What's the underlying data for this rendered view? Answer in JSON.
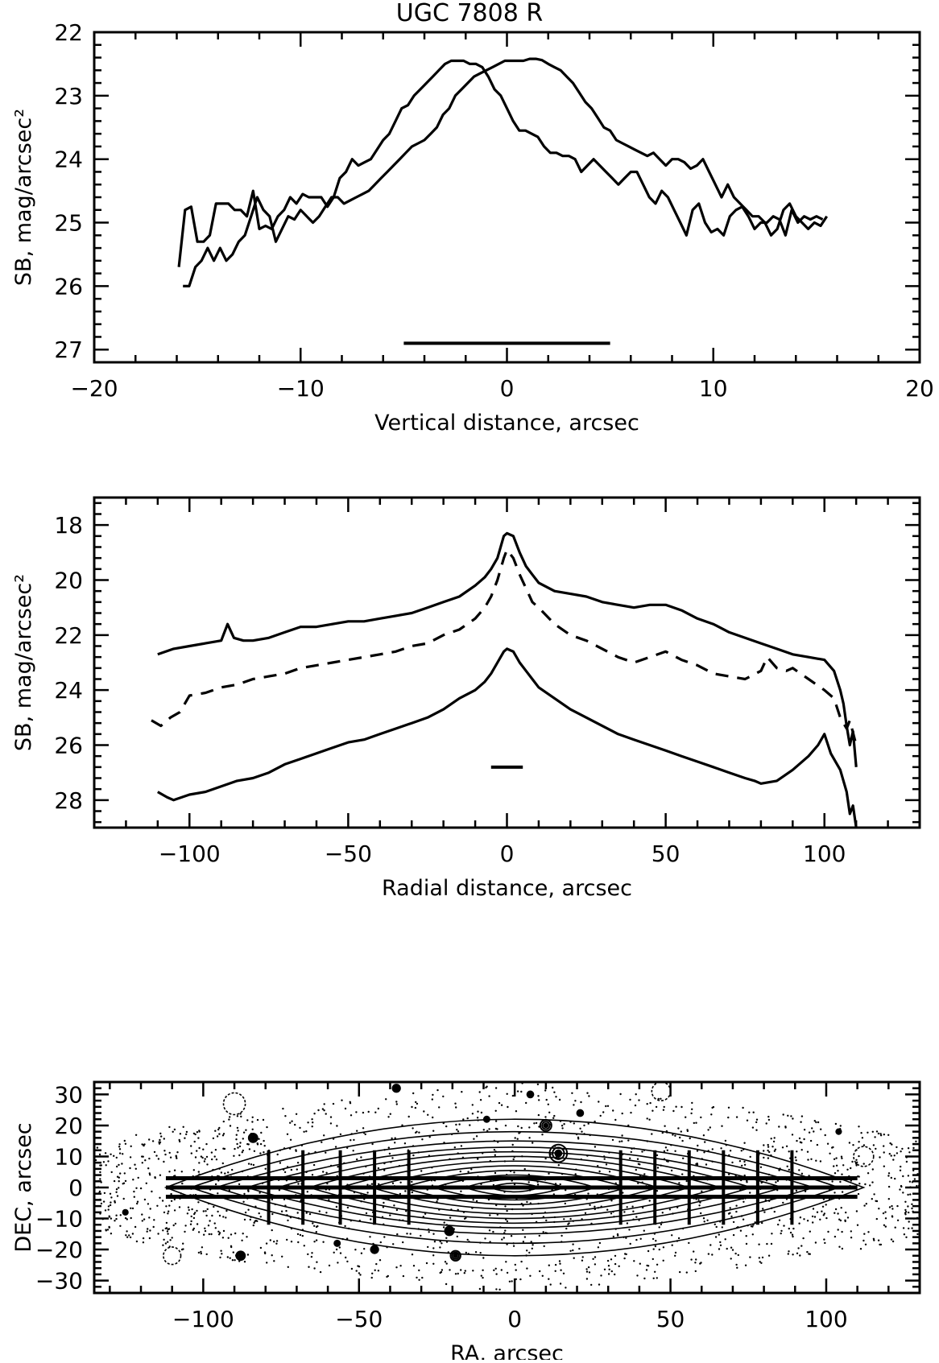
{
  "chart_data": [
    {
      "type": "line",
      "title": "UGC 7808 R",
      "xlabel": "Vertical distance, arcsec",
      "ylabel": "SB, mag/arcsec²",
      "xlim": [
        -20,
        20
      ],
      "ylim": [
        27.2,
        22
      ],
      "y_inverted": true,
      "xticks": [
        -20,
        -10,
        0,
        10,
        20
      ],
      "xtick_labels": [
        "−20",
        "−10",
        "0",
        "10",
        "20"
      ],
      "yticks": [
        22,
        23,
        24,
        25,
        26,
        27
      ],
      "ytick_labels": [
        "22",
        "23",
        "24",
        "25",
        "26",
        "27"
      ],
      "series": [
        {
          "style": "solid",
          "x": [
            -15.9,
            -15.6,
            -15.3,
            -15.0,
            -14.7,
            -14.4,
            -14.1,
            -13.8,
            -13.5,
            -13.2,
            -12.9,
            -12.6,
            -12.3,
            -12.0,
            -11.7,
            -11.4,
            -11.1,
            -10.8,
            -10.5,
            -10.2,
            -9.9,
            -9.6,
            -9.3,
            -9.0,
            -8.7,
            -8.4,
            -8.1,
            -7.8,
            -7.5,
            -7.2,
            -6.9,
            -6.6,
            -6.3,
            -6.0,
            -5.7,
            -5.4,
            -5.1,
            -4.8,
            -4.5,
            -4.2,
            -3.9,
            -3.6,
            -3.3,
            -3.0,
            -2.7,
            -2.4,
            -2.1,
            -1.8,
            -1.5,
            -1.2,
            -0.9,
            -0.6,
            -0.3,
            0.0,
            0.3,
            0.6,
            0.9,
            1.2,
            1.5,
            1.8,
            2.1,
            2.4,
            2.7,
            3.0,
            3.3,
            3.6,
            3.9,
            4.2,
            4.5,
            4.8,
            5.1,
            5.4,
            5.7,
            6.0,
            6.3,
            6.6,
            6.9,
            7.2,
            7.5,
            7.8,
            8.1,
            8.4,
            8.7,
            9.0,
            9.3,
            9.6,
            9.9,
            10.2,
            10.5,
            10.8,
            11.1,
            11.4,
            11.7,
            12.0,
            12.3,
            12.6,
            12.9,
            13.2,
            13.5,
            13.8,
            14.1,
            14.4,
            14.7,
            15.0,
            15.3
          ],
          "y": [
            25.7,
            24.8,
            24.75,
            25.3,
            25.3,
            25.2,
            24.7,
            24.7,
            24.7,
            24.8,
            24.8,
            24.9,
            24.5,
            25.1,
            25.05,
            25.1,
            24.9,
            24.8,
            24.6,
            24.7,
            24.55,
            24.6,
            24.6,
            24.6,
            24.75,
            24.6,
            24.3,
            24.2,
            24.0,
            24.1,
            24.05,
            24.0,
            23.85,
            23.7,
            23.6,
            23.4,
            23.2,
            23.15,
            23.0,
            22.9,
            22.8,
            22.7,
            22.6,
            22.5,
            22.45,
            22.45,
            22.45,
            22.5,
            22.5,
            22.55,
            22.7,
            22.9,
            23.0,
            23.2,
            23.4,
            23.55,
            23.55,
            23.6,
            23.65,
            23.8,
            23.9,
            23.9,
            23.95,
            23.95,
            24.0,
            24.2,
            24.1,
            24.0,
            24.1,
            24.2,
            24.3,
            24.4,
            24.3,
            24.2,
            24.2,
            24.4,
            24.6,
            24.7,
            24.5,
            24.6,
            24.8,
            25.0,
            25.2,
            24.8,
            24.7,
            25.0,
            25.15,
            25.1,
            25.2,
            24.9,
            24.8,
            24.75,
            24.9,
            25.1,
            25.0,
            25.0,
            24.9,
            24.95,
            25.2,
            24.8,
            25.0,
            24.9,
            24.95,
            24.9,
            24.95
          ]
        },
        {
          "style": "solid",
          "x": [
            -15.7,
            -15.4,
            -15.1,
            -14.8,
            -14.5,
            -14.2,
            -13.9,
            -13.6,
            -13.3,
            -13.0,
            -12.7,
            -12.4,
            -12.1,
            -11.8,
            -11.5,
            -11.2,
            -10.9,
            -10.6,
            -10.3,
            -10.0,
            -9.7,
            -9.4,
            -9.1,
            -8.8,
            -8.5,
            -8.2,
            -7.9,
            -7.6,
            -7.3,
            -7.0,
            -6.7,
            -6.4,
            -6.1,
            -5.8,
            -5.5,
            -5.2,
            -4.9,
            -4.6,
            -4.3,
            -4.0,
            -3.7,
            -3.4,
            -3.1,
            -2.8,
            -2.5,
            -2.2,
            -1.9,
            -1.6,
            -1.3,
            -1.0,
            -0.7,
            -0.4,
            -0.1,
            0.2,
            0.5,
            0.8,
            1.1,
            1.4,
            1.7,
            2.0,
            2.3,
            2.6,
            2.9,
            3.2,
            3.5,
            3.8,
            4.1,
            4.4,
            4.7,
            5.0,
            5.3,
            5.6,
            5.9,
            6.2,
            6.5,
            6.8,
            7.1,
            7.4,
            7.7,
            8.0,
            8.3,
            8.6,
            8.9,
            9.2,
            9.5,
            9.8,
            10.1,
            10.4,
            10.7,
            11.0,
            11.3,
            11.6,
            11.9,
            12.2,
            12.5,
            12.8,
            13.1,
            13.4,
            13.7,
            14.0,
            14.3,
            14.6,
            14.9,
            15.2,
            15.5
          ],
          "y": [
            26.0,
            26.0,
            25.7,
            25.6,
            25.4,
            25.6,
            25.4,
            25.6,
            25.5,
            25.3,
            25.2,
            24.9,
            24.6,
            24.8,
            24.9,
            25.3,
            25.1,
            24.9,
            24.95,
            24.8,
            24.9,
            25.0,
            24.9,
            24.75,
            24.6,
            24.6,
            24.7,
            24.65,
            24.6,
            24.55,
            24.5,
            24.4,
            24.3,
            24.2,
            24.1,
            24.0,
            23.9,
            23.8,
            23.75,
            23.7,
            23.6,
            23.5,
            23.3,
            23.2,
            23.0,
            22.9,
            22.8,
            22.7,
            22.65,
            22.6,
            22.55,
            22.5,
            22.45,
            22.45,
            22.45,
            22.45,
            22.42,
            22.42,
            22.44,
            22.5,
            22.55,
            22.6,
            22.7,
            22.8,
            22.95,
            23.1,
            23.2,
            23.35,
            23.5,
            23.55,
            23.7,
            23.75,
            23.8,
            23.85,
            23.9,
            23.95,
            23.9,
            24.0,
            24.1,
            24.0,
            24.0,
            24.05,
            24.15,
            24.1,
            24.0,
            24.2,
            24.4,
            24.6,
            24.4,
            24.6,
            24.7,
            24.8,
            24.9,
            24.9,
            25.0,
            25.2,
            25.1,
            24.8,
            24.7,
            24.9,
            25.0,
            25.1,
            25.0,
            25.05,
            24.9
          ]
        }
      ],
      "annotations": [
        {
          "type": "horizontal-bar",
          "x": [
            -5,
            5
          ],
          "y": 26.9
        }
      ]
    },
    {
      "type": "line",
      "xlabel": "Radial distance, arcsec",
      "ylabel": "SB, mag/arcsec²",
      "xlim": [
        -130,
        130
      ],
      "ylim": [
        29,
        17
      ],
      "y_inverted": true,
      "xticks": [
        -100,
        -50,
        0,
        50,
        100
      ],
      "xtick_labels": [
        "−100",
        "−50",
        "0",
        "50",
        "100"
      ],
      "yticks": [
        18,
        20,
        22,
        24,
        26,
        28
      ],
      "ytick_labels": [
        "18",
        "20",
        "22",
        "24",
        "26",
        "28"
      ],
      "series": [
        {
          "style": "solid",
          "x": [
            -110,
            -105,
            -100,
            -95,
            -90,
            -88,
            -86,
            -83,
            -80,
            -75,
            -70,
            -65,
            -60,
            -55,
            -50,
            -45,
            -40,
            -35,
            -30,
            -25,
            -20,
            -15,
            -10,
            -7,
            -5,
            -3,
            -1,
            0,
            2,
            4,
            6,
            8,
            10,
            15,
            20,
            25,
            30,
            35,
            40,
            45,
            50,
            55,
            60,
            65,
            70,
            75,
            80,
            85,
            90,
            95,
            100,
            103,
            105,
            106,
            107,
            108,
            109,
            110
          ],
          "y": [
            22.7,
            22.5,
            22.4,
            22.3,
            22.2,
            21.6,
            22.1,
            22.2,
            22.2,
            22.1,
            21.9,
            21.7,
            21.7,
            21.6,
            21.5,
            21.5,
            21.4,
            21.3,
            21.2,
            21.0,
            20.8,
            20.6,
            20.2,
            19.9,
            19.6,
            19.2,
            18.4,
            18.3,
            18.4,
            19.0,
            19.5,
            19.8,
            20.1,
            20.4,
            20.5,
            20.6,
            20.8,
            20.9,
            21.0,
            20.9,
            20.9,
            21.1,
            21.4,
            21.6,
            21.9,
            22.1,
            22.3,
            22.5,
            22.7,
            22.8,
            22.9,
            23.3,
            24.0,
            24.5,
            25.3,
            26.0,
            25.5,
            26.8
          ]
        },
        {
          "style": "dashed",
          "x": [
            -112,
            -109,
            -106,
            -103,
            -100,
            -95,
            -90,
            -85,
            -80,
            -75,
            -70,
            -65,
            -60,
            -55,
            -50,
            -45,
            -40,
            -35,
            -30,
            -25,
            -20,
            -15,
            -10,
            -7,
            -5,
            -3,
            -1,
            0,
            2,
            4,
            6,
            8,
            10,
            15,
            20,
            25,
            30,
            35,
            40,
            45,
            50,
            55,
            60,
            65,
            70,
            75,
            80,
            82,
            85,
            88,
            90,
            95,
            100,
            103,
            105,
            107,
            108,
            110
          ],
          "y": [
            25.1,
            25.3,
            25.0,
            24.8,
            24.2,
            24.1,
            23.9,
            23.8,
            23.6,
            23.5,
            23.4,
            23.2,
            23.1,
            23.0,
            22.9,
            22.8,
            22.7,
            22.6,
            22.4,
            22.3,
            22.0,
            21.8,
            21.4,
            21.0,
            20.6,
            20.0,
            19.2,
            18.9,
            19.2,
            19.8,
            20.3,
            20.8,
            21.0,
            21.6,
            22.0,
            22.2,
            22.5,
            22.8,
            23.0,
            22.8,
            22.6,
            22.9,
            23.1,
            23.4,
            23.5,
            23.6,
            23.3,
            22.8,
            23.2,
            23.3,
            23.2,
            23.6,
            24.0,
            24.3,
            25.0,
            25.4,
            25.1,
            26.0
          ]
        },
        {
          "style": "solid",
          "x": [
            -110,
            -107,
            -105,
            -100,
            -95,
            -90,
            -85,
            -80,
            -75,
            -70,
            -65,
            -60,
            -55,
            -50,
            -45,
            -40,
            -35,
            -30,
            -25,
            -20,
            -15,
            -10,
            -7,
            -5,
            -3,
            -1,
            0,
            2,
            4,
            6,
            8,
            10,
            15,
            20,
            25,
            30,
            35,
            40,
            45,
            50,
            55,
            60,
            65,
            70,
            75,
            78,
            80,
            85,
            90,
            95,
            98,
            100,
            102,
            105,
            107,
            108,
            109,
            110
          ],
          "y": [
            27.7,
            27.9,
            28.0,
            27.8,
            27.7,
            27.5,
            27.3,
            27.2,
            27.0,
            26.7,
            26.5,
            26.3,
            26.1,
            25.9,
            25.8,
            25.6,
            25.4,
            25.2,
            25.0,
            24.7,
            24.3,
            24.0,
            23.7,
            23.4,
            23.0,
            22.6,
            22.5,
            22.6,
            23.0,
            23.3,
            23.6,
            23.9,
            24.3,
            24.7,
            25.0,
            25.3,
            25.6,
            25.8,
            26.0,
            26.2,
            26.4,
            26.6,
            26.8,
            27.0,
            27.2,
            27.3,
            27.4,
            27.3,
            26.9,
            26.4,
            26.0,
            25.6,
            26.3,
            26.9,
            27.7,
            28.5,
            28.2,
            29.0
          ]
        }
      ],
      "annotations": [
        {
          "type": "horizontal-bar",
          "x": [
            -5,
            5
          ],
          "y": 26.8
        }
      ]
    },
    {
      "type": "contour",
      "xlabel": "RA, arcsec",
      "ylabel": "DEC, arcsec",
      "xlim": [
        -135,
        130
      ],
      "ylim": [
        -34,
        34
      ],
      "xticks": [
        -100,
        -50,
        0,
        50,
        100
      ],
      "xtick_labels": [
        "−100",
        "−50",
        "0",
        "50",
        "100"
      ],
      "yticks": [
        30,
        20,
        10,
        0,
        -10,
        -20,
        -30
      ],
      "ytick_labels": [
        "30",
        "20",
        "10",
        "0",
        "−10",
        "−20",
        "−30"
      ],
      "contour_levels": [
        {
          "a": 112,
          "b": 22
        },
        {
          "a": 104,
          "b": 18
        },
        {
          "a": 96,
          "b": 15
        },
        {
          "a": 86,
          "b": 13
        },
        {
          "a": 76,
          "b": 11.5
        },
        {
          "a": 66,
          "b": 10
        },
        {
          "a": 56,
          "b": 8.5
        },
        {
          "a": 46,
          "b": 7
        },
        {
          "a": 36,
          "b": 5.5
        },
        {
          "a": 26,
          "b": 4
        },
        {
          "a": 16,
          "b": 2.6
        },
        {
          "a": 8,
          "b": 1.4
        }
      ],
      "horizontal_slits_dec": [
        3,
        0,
        -3
      ],
      "horizontal_slit_ra_range": [
        -112,
        110
      ],
      "vertical_cuts_ra": [
        -79,
        -68,
        -56,
        -45,
        -34,
        34,
        45,
        56,
        67,
        78,
        89
      ],
      "vertical_cut_dec_range": [
        -12,
        12
      ],
      "stars": [
        {
          "ra": 14,
          "dec": 11,
          "r": 2.8
        },
        {
          "ra": 10,
          "dec": 20,
          "r": 1.8
        },
        {
          "ra": -21,
          "dec": -14,
          "r": 1.4
        },
        {
          "ra": -19,
          "dec": -22,
          "r": 1.6
        },
        {
          "ra": -84,
          "dec": 16,
          "r": 1.4
        },
        {
          "ra": -88,
          "dec": -22,
          "r": 1.4
        },
        {
          "ra": -45,
          "dec": -20,
          "r": 1.2
        },
        {
          "ra": -38,
          "dec": 32,
          "r": 1.2
        },
        {
          "ra": 5,
          "dec": 30,
          "r": 1.0
        },
        {
          "ra": 21,
          "dec": 24,
          "r": 1.0
        },
        {
          "ra": -9,
          "dec": 22,
          "r": 0.9
        },
        {
          "ra": -57,
          "dec": -18,
          "r": 0.9
        },
        {
          "ra": -125,
          "dec": -8,
          "r": 0.8
        },
        {
          "ra": 104,
          "dec": 18,
          "r": 0.8
        }
      ],
      "extended_sources": [
        {
          "ra": -90,
          "dec": 27,
          "r": 3.5
        },
        {
          "ra": 47,
          "dec": 31,
          "r": 3.0
        },
        {
          "ra": -110,
          "dec": -22,
          "r": 2.8
        },
        {
          "ra": 112,
          "dec": 10,
          "r": 3.2
        }
      ]
    }
  ]
}
